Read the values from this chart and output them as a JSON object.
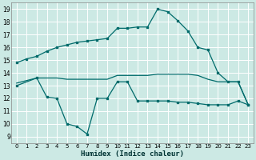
{
  "title": "",
  "xlabel": "Humidex (Indice chaleur)",
  "ylabel": "",
  "background_color": "#cce9e4",
  "grid_color": "#ffffff",
  "line_color": "#006b6b",
  "xlim": [
    -0.5,
    23.5
  ],
  "ylim": [
    8.5,
    19.5
  ],
  "yticks": [
    9,
    10,
    11,
    12,
    13,
    14,
    15,
    16,
    17,
    18,
    19
  ],
  "xticks": [
    0,
    1,
    2,
    3,
    4,
    5,
    6,
    7,
    8,
    9,
    10,
    11,
    12,
    13,
    14,
    15,
    16,
    17,
    18,
    19,
    20,
    21,
    22,
    23
  ],
  "line1_x": [
    0,
    1,
    2,
    3,
    4,
    5,
    6,
    7,
    8,
    9,
    10,
    11,
    12,
    13,
    14,
    15,
    16,
    17,
    18,
    19,
    20,
    21,
    22,
    23
  ],
  "line1_y": [
    14.8,
    15.1,
    15.3,
    15.7,
    16.0,
    16.2,
    16.4,
    16.5,
    16.6,
    16.7,
    17.5,
    17.5,
    17.6,
    17.6,
    19.0,
    18.8,
    18.1,
    17.3,
    16.0,
    15.8,
    14.0,
    13.3,
    13.3,
    11.5
  ],
  "line2_x": [
    0,
    2,
    3,
    4,
    5,
    6,
    7,
    8,
    9,
    10,
    11,
    12,
    13,
    14,
    15,
    16,
    17,
    18,
    19,
    20,
    21,
    22,
    23
  ],
  "line2_y": [
    13.2,
    13.6,
    13.6,
    13.6,
    13.5,
    13.5,
    13.5,
    13.5,
    13.5,
    13.8,
    13.8,
    13.8,
    13.8,
    13.9,
    13.9,
    13.9,
    13.9,
    13.8,
    13.5,
    13.3,
    13.3,
    13.3,
    11.5
  ],
  "line3_x": [
    0,
    2,
    3,
    4,
    5,
    6,
    7,
    8,
    9,
    10,
    11,
    12,
    13,
    14,
    15,
    16,
    17,
    18,
    19,
    20,
    21,
    22,
    23
  ],
  "line3_y": [
    13.0,
    13.6,
    12.1,
    12.0,
    10.0,
    9.8,
    9.2,
    12.0,
    12.0,
    13.3,
    13.3,
    11.8,
    11.8,
    11.8,
    11.8,
    11.7,
    11.7,
    11.6,
    11.5,
    11.5,
    11.5,
    11.8,
    11.5
  ]
}
